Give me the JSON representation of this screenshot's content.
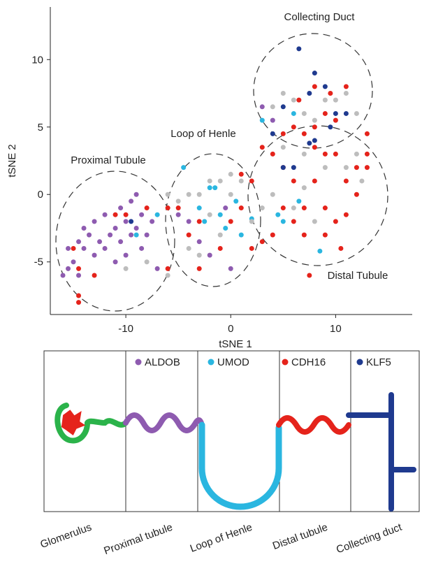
{
  "chart_data": {
    "type": "scatter",
    "xlabel": "tSNE 1",
    "ylabel": "tSNE 2",
    "xlim": [
      -17.2,
      17.3
    ],
    "ylim": [
      -8.9,
      13.9
    ],
    "xticks": [
      -10,
      0,
      10
    ],
    "yticks": [
      -5,
      0,
      5,
      10
    ],
    "annotations": [
      "Proximal Tubule",
      "Loop of Henle",
      "Distal Tubule",
      "Collecting Duct"
    ],
    "series": [
      {
        "name": "ALDOB",
        "color": "#8e5bb0",
        "x": [
          -16,
          -15.5,
          -15,
          -14.5,
          -14,
          -14,
          -13.5,
          -13,
          -13,
          -12.5,
          -12,
          -12,
          -11.5,
          -11,
          -11,
          -10.5,
          -10.5,
          -10,
          -10,
          -9.5,
          -9.5,
          -9,
          -9,
          -8.5,
          -8.5,
          -8,
          -7.5,
          -7,
          -14.5,
          -15.5,
          -5,
          -4,
          -3,
          -2,
          0,
          -0.5,
          3,
          4
        ],
        "y": [
          -6,
          -4,
          -5,
          -3.5,
          -4,
          -2.5,
          -3,
          -4.5,
          -2,
          -3.5,
          -1.5,
          -4,
          -3,
          -2.5,
          -5,
          -1,
          -3.5,
          -2,
          -4.5,
          -0.5,
          -3,
          0,
          -2.5,
          -1.5,
          -4,
          -3,
          -2,
          -5.5,
          -6,
          -5.5,
          -1.5,
          -2,
          -3.5,
          -4.5,
          -5.5,
          -1,
          6.5,
          5.5
        ]
      },
      {
        "name": "UMOD",
        "color": "#2ab6e0",
        "x": [
          -4.5,
          -3,
          -2,
          -1,
          -0.5,
          0.5,
          1,
          -1.5,
          -2.5,
          2,
          4.5,
          6.5,
          8.5,
          5,
          6,
          3,
          -7,
          -9
        ],
        "y": [
          2,
          -1,
          0.5,
          -1.5,
          -2.5,
          -0.5,
          -3,
          0.5,
          -2,
          -1.8,
          -1.5,
          -0.5,
          -4.2,
          -2,
          6,
          5.5,
          -1.5,
          -3
        ]
      },
      {
        "name": "CDH16",
        "color": "#e5231b",
        "x": [
          -15,
          -14.5,
          -14.5,
          -14.5,
          -13,
          -11,
          -10,
          -8,
          -6,
          -5,
          -4,
          -3,
          0,
          1,
          2,
          2,
          3,
          4,
          5,
          5,
          4,
          6,
          6,
          7,
          7,
          7.5,
          8,
          9,
          9,
          9,
          10,
          10,
          10.5,
          11,
          11,
          12,
          12,
          13,
          13,
          7,
          8,
          9,
          10,
          6,
          5,
          8,
          9.5,
          11,
          6.5,
          -6,
          -3,
          -1,
          3,
          8,
          1,
          13
        ],
        "y": [
          -4,
          -5.5,
          -7.5,
          -8,
          -6,
          -1.5,
          -1.5,
          -1,
          -1,
          -1,
          -3,
          -2,
          -2,
          -1,
          1,
          -4,
          3.5,
          3,
          2,
          -1,
          -3,
          1,
          -2,
          -1,
          -3,
          -6,
          3.5,
          3,
          -1,
          -3,
          3,
          -2,
          -4,
          1,
          -1.5,
          2,
          0,
          3,
          2,
          4.5,
          5,
          6,
          5.5,
          5,
          4.5,
          8,
          7.5,
          8,
          7,
          -5.5,
          -5.5,
          -4,
          -3.5,
          1,
          1.5,
          4.5
        ]
      },
      {
        "name": "KLF5",
        "color": "#1f3a8f",
        "x": [
          6.5,
          8,
          9,
          7.5,
          10,
          11,
          5,
          4,
          8,
          6,
          5,
          7.5,
          9.5,
          -9.5
        ],
        "y": [
          10.8,
          9,
          8,
          7.5,
          6,
          6,
          6.5,
          4.5,
          4,
          2,
          2,
          3.8,
          5,
          -2
        ]
      },
      {
        "color": "#bdbdbd",
        "x": [
          4,
          5,
          6,
          7,
          8,
          9,
          10,
          11,
          12,
          5,
          7,
          9,
          11,
          12,
          12.5,
          1,
          0,
          -1,
          -2,
          -3,
          -4,
          -5,
          -1,
          -3,
          -4,
          -8,
          -10,
          -6,
          2,
          3,
          4,
          6,
          7,
          8,
          0,
          -6,
          -2
        ],
        "y": [
          6.5,
          7.5,
          7,
          6,
          5.5,
          7,
          7,
          7.5,
          6,
          3.5,
          3,
          2,
          2,
          3,
          1,
          1,
          0,
          1,
          1,
          0,
          0,
          -0.5,
          -3,
          -4.5,
          -4,
          -5,
          -5.5,
          -6,
          -2,
          -1,
          0,
          -1,
          0.5,
          -2,
          1.5,
          0,
          -1.5
        ]
      }
    ]
  },
  "nephron": {
    "segments": [
      "Glomerulus",
      "Proximal tubule",
      "Loop of Henle",
      "Distal tubule",
      "Collecting duct"
    ]
  }
}
